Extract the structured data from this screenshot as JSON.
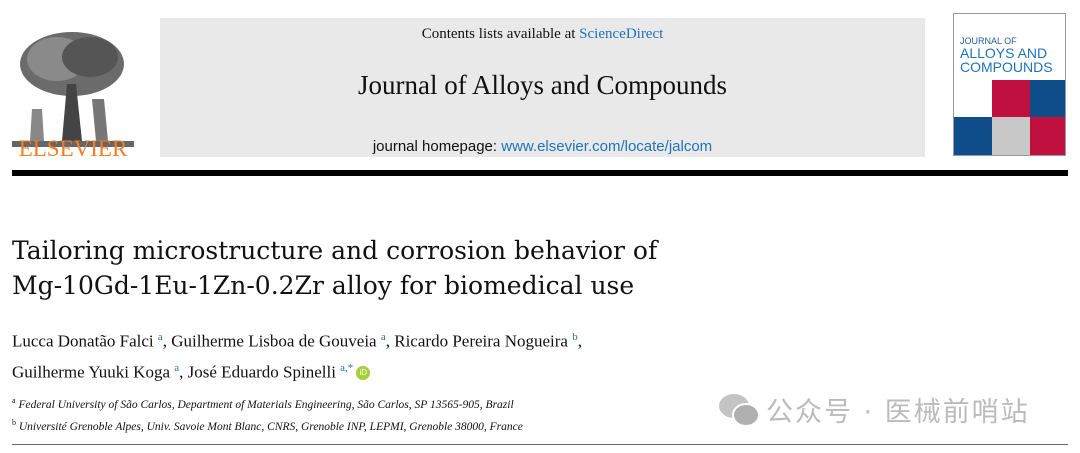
{
  "publisher": {
    "logo_text": "ELSEVIER"
  },
  "banner": {
    "contents_prefix": "Contents lists available at ",
    "contents_link": "ScienceDirect",
    "journal_title": "Journal of Alloys and Compounds",
    "homepage_prefix": "journal homepage: ",
    "homepage_link": "www.elsevier.com/locate/jalcom"
  },
  "cover": {
    "line1": "JOURNAL OF",
    "line2": "ALLOYS AND",
    "line3": "COMPOUNDS",
    "colors": [
      "#c0103f",
      "#0f4d8a",
      "#c8c8c8"
    ]
  },
  "article": {
    "title_line1": "Tailoring microstructure and corrosion behavior of",
    "title_line2": "Mg-10Gd-1Eu-1Zn-0.2Zr alloy for biomedical use",
    "authors": [
      {
        "name": "Lucca Donatão Falci",
        "aff": "a"
      },
      {
        "name": "Guilherme Lisboa de Gouveia",
        "aff": "a"
      },
      {
        "name": "Ricardo Pereira Nogueira",
        "aff": "b"
      },
      {
        "name": "Guilherme Yuuki Koga",
        "aff": "a"
      },
      {
        "name": "José Eduardo Spinelli",
        "aff": "a,*"
      }
    ],
    "orcid_label": "iD",
    "affiliations": [
      {
        "key": "a",
        "text": "Federal University of São Carlos, Department of Materials Engineering, São Carlos, SP 13565-905, Brazil"
      },
      {
        "key": "b",
        "text": "Université Grenoble Alpes, Univ. Savoie Mont Blanc, CNRS, Grenoble INP, LEPMI, Grenoble 38000, France"
      }
    ]
  },
  "watermark": "公众号 · 医械前哨站"
}
